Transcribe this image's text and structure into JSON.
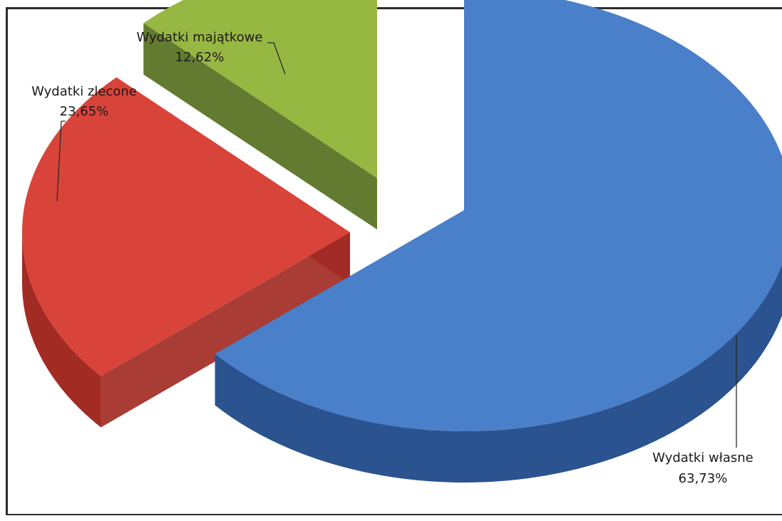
{
  "chart_data": {
    "type": "pie",
    "style": "3d-exploded",
    "legend": "none",
    "slices": [
      {
        "key": "wlasne",
        "name": "Wydatki własne",
        "value": 63.73,
        "label_value": "63,73%",
        "color": "#4a7fc9",
        "side_color": "#2a538f"
      },
      {
        "key": "zlecone",
        "name": "Wydatki zlecone",
        "value": 23.65,
        "label_value": "23,65%",
        "color": "#d9443a",
        "side_color": "#a22b24"
      },
      {
        "key": "majatkowe",
        "name": "Wydatki majątkowe",
        "value": 12.62,
        "label_value": "12,62%",
        "color": "#97b743",
        "side_color": "#55701f"
      }
    ]
  }
}
